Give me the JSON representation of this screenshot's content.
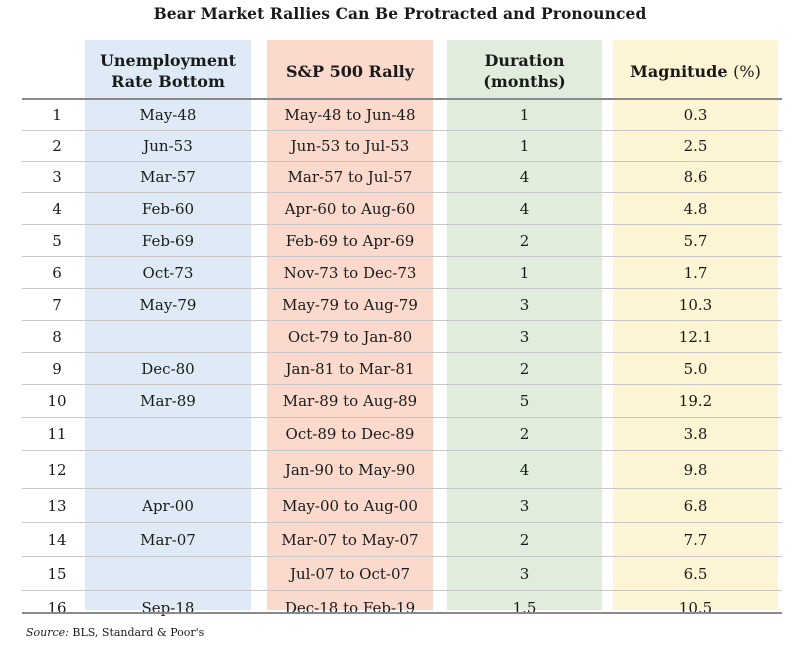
{
  "title": "Bear Market Rallies Can Be Protracted and Pronounced",
  "headers": {
    "unemployment": "Unemployment Rate Bottom",
    "rally": "S&P 500 Rally",
    "duration": "Duration (months)",
    "magnitude": "Magnitude",
    "magnitude_unit": "(%)"
  },
  "rows": [
    {
      "n": "1",
      "unemp": "May-48",
      "rally": "May-48 to Jun-48",
      "duration": "1",
      "magnitude": "0.3"
    },
    {
      "n": "2",
      "unemp": "Jun-53",
      "rally": "Jun-53 to Jul-53",
      "duration": "1",
      "magnitude": "2.5"
    },
    {
      "n": "3",
      "unemp": "Mar-57",
      "rally": "Mar-57 to Jul-57",
      "duration": "4",
      "magnitude": "8.6"
    },
    {
      "n": "4",
      "unemp": "Feb-60",
      "rally": "Apr-60 to Aug-60",
      "duration": "4",
      "magnitude": "4.8"
    },
    {
      "n": "5",
      "unemp": "Feb-69",
      "rally": "Feb-69 to Apr-69",
      "duration": "2",
      "magnitude": "5.7"
    },
    {
      "n": "6",
      "unemp": "Oct-73",
      "rally": "Nov-73 to Dec-73",
      "duration": "1",
      "magnitude": "1.7"
    },
    {
      "n": "7",
      "unemp": "May-79",
      "rally": "May-79 to Aug-79",
      "duration": "3",
      "magnitude": "10.3"
    },
    {
      "n": "8",
      "unemp": "",
      "rally": "Oct-79 to Jan-80",
      "duration": "3",
      "magnitude": "12.1"
    },
    {
      "n": "9",
      "unemp": "Dec-80",
      "rally": "Jan-81 to Mar-81",
      "duration": "2",
      "magnitude": "5.0"
    },
    {
      "n": "10",
      "unemp": "Mar-89",
      "rally": "Mar-89 to Aug-89",
      "duration": "5",
      "magnitude": "19.2"
    },
    {
      "n": "11",
      "unemp": "",
      "rally": "Oct-89 to Dec-89",
      "duration": "2",
      "magnitude": "3.8"
    },
    {
      "n": "12",
      "unemp": "",
      "rally": "Jan-90 to May-90",
      "duration": "4",
      "magnitude": "9.8"
    },
    {
      "n": "13",
      "unemp": "Apr-00",
      "rally": "May-00 to Aug-00",
      "duration": "3",
      "magnitude": "6.8"
    },
    {
      "n": "14",
      "unemp": "Mar-07",
      "rally": "Mar-07 to May-07",
      "duration": "2",
      "magnitude": "7.7"
    },
    {
      "n": "15",
      "unemp": "",
      "rally": "Jul-07 to Oct-07",
      "duration": "3",
      "magnitude": "6.5"
    },
    {
      "n": "16",
      "unemp": "Sep-18",
      "rally": "Dec-18 to Feb-19",
      "duration": "1.5",
      "magnitude": "10.5"
    }
  ],
  "source": {
    "label": "Source:",
    "text": "BLS, Standard & Poor's"
  },
  "colors": {
    "unemployment_column": "#deebf7",
    "rally_column": "#fbd9cc",
    "duration_column": "#e0ecdc",
    "magnitude_column": "#fdf5d4"
  }
}
